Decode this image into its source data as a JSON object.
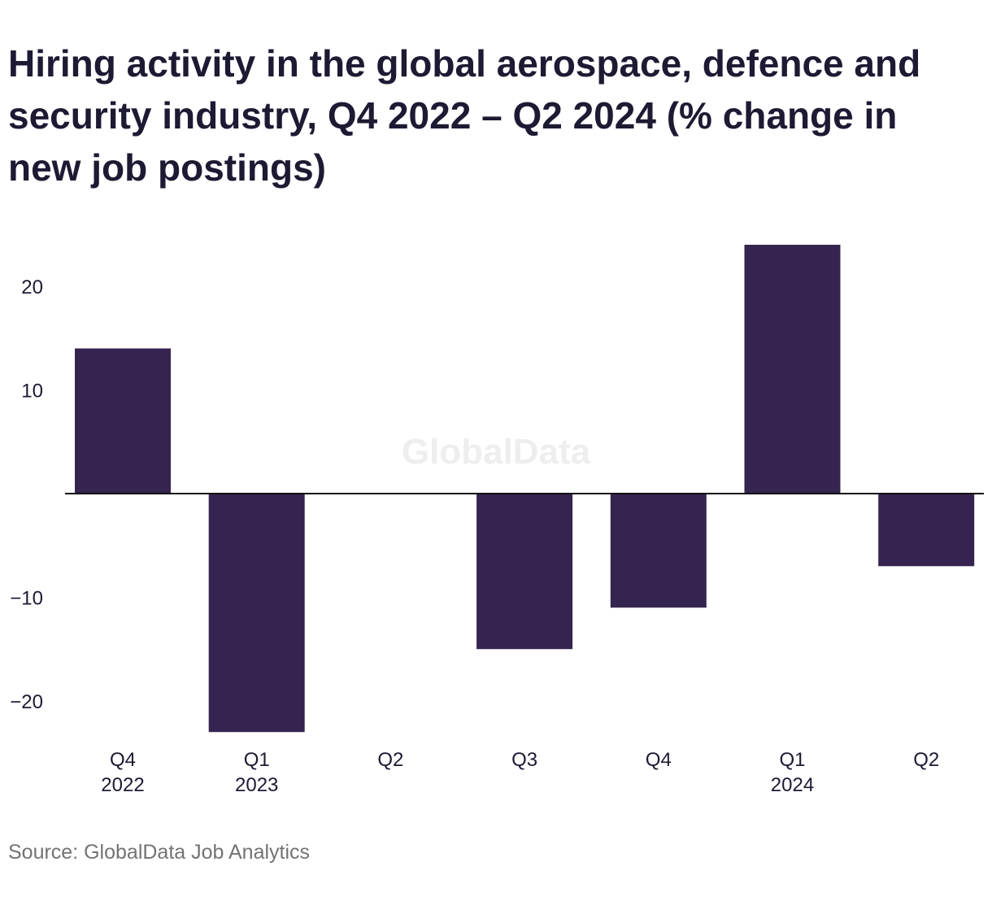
{
  "chart_data": {
    "type": "bar",
    "title": "Hiring activity in the global aerospace, defence and security industry, Q4 2022 – Q2 2024 (% change in new job postings)",
    "categories": [
      {
        "line1": "Q4",
        "line2": "2022"
      },
      {
        "line1": "Q1",
        "line2": "2023"
      },
      {
        "line1": "Q2",
        "line2": ""
      },
      {
        "line1": "Q3",
        "line2": ""
      },
      {
        "line1": "Q4",
        "line2": ""
      },
      {
        "line1": "Q1",
        "line2": "2024"
      },
      {
        "line1": "Q2",
        "line2": ""
      }
    ],
    "values": [
      14,
      -23,
      0,
      -15,
      -11,
      24,
      -7
    ],
    "yticks": [
      20,
      10,
      -10,
      -20
    ],
    "ytick_labels": [
      "20",
      "10",
      "−10",
      "−20"
    ],
    "ylim": [
      -24,
      27
    ],
    "bar_color": "#35244f",
    "grid": false,
    "watermark": "GlobalData",
    "source": "Source: GlobalData Job Analytics"
  }
}
